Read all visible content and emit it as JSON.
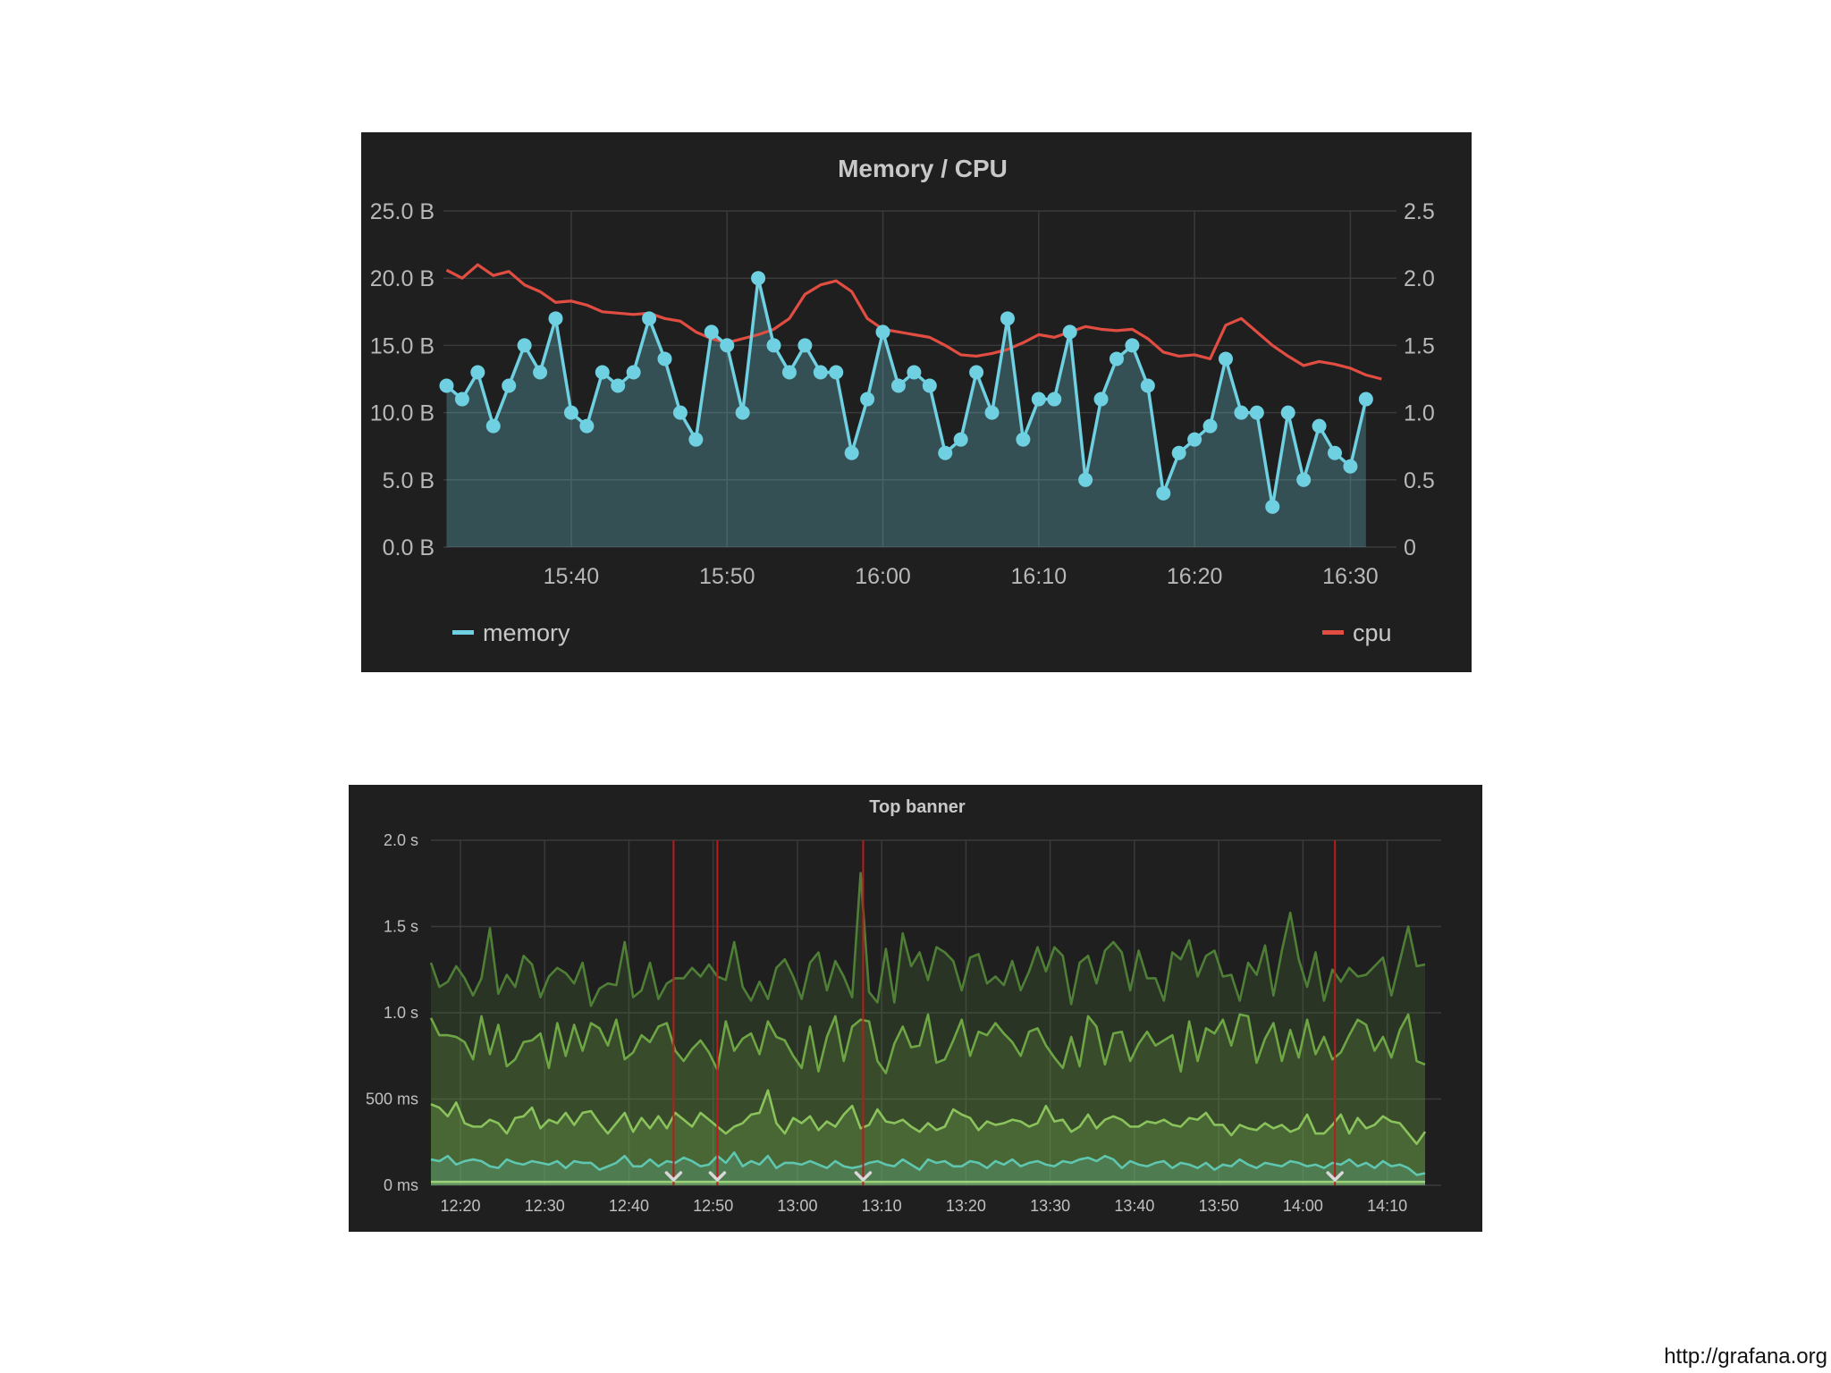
{
  "footer": {
    "url": "http://grafana.org"
  },
  "chart_data": [
    {
      "type": "line",
      "title": "Memory / CPU",
      "x_tick_labels": [
        "15:40",
        "15:50",
        "16:00",
        "16:10",
        "16:20",
        "16:30"
      ],
      "x_tick_minutes": [
        40,
        50,
        60,
        70,
        80,
        90
      ],
      "xlim_minutes": [
        31.8,
        92.5
      ],
      "y_left": {
        "ticks": [
          0,
          5,
          10,
          15,
          20,
          25
        ],
        "tick_labels": [
          "0.0 B",
          "5.0 B",
          "10.0 B",
          "15.0 B",
          "20.0 B",
          "25.0 B"
        ],
        "ylim": [
          0,
          25
        ]
      },
      "y_right": {
        "ticks": [
          0,
          0.5,
          1.0,
          1.5,
          2.0,
          2.5
        ],
        "tick_labels": [
          "0",
          "0.5",
          "1.0",
          "1.5",
          "2.0",
          "2.5"
        ],
        "ylim": [
          0,
          2.5
        ]
      },
      "grid": true,
      "legend": {
        "position": "bottom",
        "items": [
          {
            "name": "memory",
            "color": "#6ed0e0"
          },
          {
            "name": "cpu",
            "color": "#e24d42"
          }
        ]
      },
      "series": [
        {
          "name": "memory",
          "axis": "left",
          "color": "#6ed0e0",
          "fill": true,
          "points": true,
          "x_minutes": [
            32,
            33,
            34,
            35,
            36,
            37,
            38,
            39,
            40,
            41,
            42,
            43,
            44,
            45,
            46,
            47,
            48,
            49,
            50,
            51,
            52,
            53,
            54,
            55,
            56,
            57,
            58,
            59,
            60,
            61,
            62,
            63,
            64,
            65,
            66,
            67,
            68,
            69,
            70,
            71,
            72,
            73,
            74,
            75,
            76,
            77,
            78,
            79,
            80,
            81,
            82,
            83,
            84,
            85,
            86,
            87,
            88,
            89,
            90,
            91
          ],
          "values": [
            12,
            11,
            13,
            9,
            12,
            15,
            13,
            17,
            10,
            9,
            13,
            12,
            13,
            17,
            14,
            10,
            8,
            16,
            15,
            10,
            20,
            15,
            13,
            15,
            13,
            13,
            7,
            11,
            16,
            12,
            13,
            12,
            7,
            8,
            13,
            10,
            17,
            8,
            11,
            11,
            16,
            5,
            11,
            14,
            15,
            12,
            4,
            7,
            8,
            9,
            14,
            10,
            10,
            3,
            10,
            5,
            9,
            7,
            6,
            11
          ]
        },
        {
          "name": "cpu",
          "axis": "right",
          "color": "#e24d42",
          "fill": false,
          "points": false,
          "x_minutes": [
            32,
            33,
            34,
            35,
            36,
            37,
            38,
            39,
            40,
            41,
            42,
            43,
            44,
            45,
            46,
            47,
            48,
            49,
            50,
            51,
            52,
            53,
            54,
            55,
            56,
            57,
            58,
            59,
            60,
            61,
            62,
            63,
            64,
            65,
            66,
            67,
            68,
            69,
            70,
            71,
            72,
            73,
            74,
            75,
            76,
            77,
            78,
            79,
            80,
            81,
            82,
            83,
            84,
            85,
            86,
            87,
            88,
            89,
            90,
            91,
            92
          ],
          "values": [
            2.06,
            2.0,
            2.1,
            2.02,
            2.05,
            1.95,
            1.9,
            1.82,
            1.83,
            1.8,
            1.75,
            1.74,
            1.73,
            1.74,
            1.7,
            1.68,
            1.6,
            1.55,
            1.52,
            1.55,
            1.58,
            1.62,
            1.7,
            1.88,
            1.95,
            1.98,
            1.9,
            1.7,
            1.62,
            1.6,
            1.58,
            1.56,
            1.5,
            1.43,
            1.42,
            1.44,
            1.47,
            1.52,
            1.58,
            1.56,
            1.6,
            1.64,
            1.62,
            1.61,
            1.62,
            1.55,
            1.45,
            1.42,
            1.43,
            1.4,
            1.65,
            1.7,
            1.6,
            1.5,
            1.42,
            1.35,
            1.38,
            1.36,
            1.33,
            1.28,
            1.25
          ]
        }
      ]
    },
    {
      "type": "area",
      "title": "Top banner",
      "x_tick_labels": [
        "12:20",
        "12:30",
        "12:40",
        "12:50",
        "13:00",
        "13:10",
        "13:20",
        "13:30",
        "13:40",
        "13:50",
        "14:00",
        "14:10"
      ],
      "x_tick_minutes": [
        20,
        30,
        40,
        50,
        60,
        70,
        80,
        90,
        100,
        110,
        120,
        130
      ],
      "xlim_minutes": [
        16.5,
        134.5
      ],
      "y": {
        "ticks": [
          0,
          0.5,
          1.0,
          1.5,
          2.0
        ],
        "tick_labels": [
          "0 ms",
          "500 ms",
          "1.0 s",
          "1.5 s",
          "2.0 s"
        ],
        "ylim": [
          0,
          2.0
        ]
      },
      "grid": true,
      "annotations_x_minutes": [
        45.3,
        50.5,
        67.8,
        123.8
      ],
      "annotation_color": "#bb1b1b",
      "series": [
        {
          "color": "#4f7f36",
          "x_start_minutes": 16.5,
          "x_step_minutes": 1,
          "values": [
            1.29,
            1.15,
            1.18,
            1.27,
            1.2,
            1.1,
            1.2,
            1.49,
            1.11,
            1.22,
            1.15,
            1.33,
            1.28,
            1.09,
            1.21,
            1.26,
            1.23,
            1.17,
            1.29,
            1.04,
            1.14,
            1.17,
            1.16,
            1.41,
            1.09,
            1.13,
            1.29,
            1.08,
            1.17,
            1.2,
            1.2,
            1.26,
            1.21,
            1.28,
            1.21,
            1.19,
            1.41,
            1.15,
            1.07,
            1.18,
            1.08,
            1.26,
            1.31,
            1.21,
            1.08,
            1.29,
            1.35,
            1.13,
            1.3,
            1.21,
            1.09,
            1.81,
            1.12,
            1.06,
            1.37,
            1.06,
            1.46,
            1.27,
            1.35,
            1.19,
            1.38,
            1.35,
            1.3,
            1.13,
            1.32,
            1.34,
            1.17,
            1.21,
            1.16,
            1.3,
            1.13,
            1.24,
            1.38,
            1.24,
            1.38,
            1.33,
            1.05,
            1.29,
            1.33,
            1.17,
            1.36,
            1.41,
            1.35,
            1.13,
            1.36,
            1.2,
            1.2,
            1.07,
            1.35,
            1.31,
            1.42,
            1.21,
            1.33,
            1.36,
            1.21,
            1.22,
            1.07,
            1.29,
            1.22,
            1.39,
            1.1,
            1.36,
            1.58,
            1.31,
            1.15,
            1.35,
            1.07,
            1.25,
            1.18,
            1.26,
            1.21,
            1.22,
            1.27,
            1.32,
            1.1,
            1.3,
            1.5,
            1.27,
            1.28
          ]
        },
        {
          "color": "#6ea545",
          "x_start_minutes": 16.5,
          "x_step_minutes": 1,
          "values": [
            0.97,
            0.87,
            0.87,
            0.86,
            0.83,
            0.73,
            0.98,
            0.76,
            0.93,
            0.69,
            0.73,
            0.83,
            0.84,
            0.88,
            0.68,
            0.94,
            0.75,
            0.93,
            0.78,
            0.94,
            0.91,
            0.81,
            0.96,
            0.73,
            0.77,
            0.87,
            0.83,
            0.92,
            0.94,
            0.78,
            0.72,
            0.79,
            0.84,
            0.77,
            0.67,
            0.95,
            0.78,
            0.85,
            0.88,
            0.76,
            0.95,
            0.86,
            0.84,
            0.75,
            0.68,
            0.92,
            0.66,
            0.86,
            0.98,
            0.72,
            0.92,
            0.96,
            0.95,
            0.72,
            0.65,
            0.82,
            0.92,
            0.8,
            0.81,
            0.99,
            0.71,
            0.73,
            0.84,
            0.96,
            0.75,
            0.89,
            0.87,
            0.94,
            0.88,
            0.83,
            0.75,
            0.89,
            0.91,
            0.81,
            0.74,
            0.68,
            0.86,
            0.69,
            0.98,
            0.92,
            0.7,
            0.88,
            0.89,
            0.72,
            0.82,
            0.89,
            0.81,
            0.84,
            0.87,
            0.66,
            0.95,
            0.72,
            0.91,
            0.88,
            0.96,
            0.81,
            0.99,
            0.98,
            0.71,
            0.85,
            0.94,
            0.72,
            0.9,
            0.74,
            0.96,
            0.76,
            0.86,
            0.73,
            0.77,
            0.87,
            0.96,
            0.93,
            0.78,
            0.86,
            0.74,
            0.9,
            0.99,
            0.72,
            0.7
          ]
        },
        {
          "color": "#8ac35c",
          "x_start_minutes": 16.5,
          "x_step_minutes": 1,
          "values": [
            0.47,
            0.45,
            0.4,
            0.48,
            0.36,
            0.34,
            0.34,
            0.38,
            0.36,
            0.3,
            0.39,
            0.4,
            0.45,
            0.33,
            0.38,
            0.36,
            0.42,
            0.35,
            0.42,
            0.43,
            0.36,
            0.3,
            0.36,
            0.42,
            0.31,
            0.39,
            0.33,
            0.4,
            0.33,
            0.42,
            0.38,
            0.34,
            0.42,
            0.38,
            0.34,
            0.3,
            0.34,
            0.36,
            0.41,
            0.42,
            0.55,
            0.36,
            0.3,
            0.39,
            0.36,
            0.4,
            0.32,
            0.37,
            0.34,
            0.41,
            0.46,
            0.33,
            0.35,
            0.44,
            0.37,
            0.36,
            0.38,
            0.34,
            0.31,
            0.36,
            0.32,
            0.34,
            0.44,
            0.41,
            0.39,
            0.32,
            0.37,
            0.35,
            0.36,
            0.38,
            0.37,
            0.34,
            0.36,
            0.46,
            0.37,
            0.38,
            0.31,
            0.34,
            0.41,
            0.33,
            0.38,
            0.4,
            0.38,
            0.34,
            0.34,
            0.37,
            0.36,
            0.38,
            0.35,
            0.34,
            0.39,
            0.38,
            0.42,
            0.35,
            0.35,
            0.29,
            0.35,
            0.33,
            0.32,
            0.36,
            0.33,
            0.35,
            0.31,
            0.33,
            0.41,
            0.3,
            0.3,
            0.35,
            0.41,
            0.3,
            0.39,
            0.33,
            0.35,
            0.4,
            0.37,
            0.36,
            0.3,
            0.24,
            0.31
          ]
        },
        {
          "color": "#5fc7b0",
          "x_start_minutes": 16.5,
          "x_step_minutes": 1,
          "values": [
            0.15,
            0.14,
            0.17,
            0.12,
            0.14,
            0.15,
            0.14,
            0.11,
            0.1,
            0.15,
            0.13,
            0.12,
            0.14,
            0.13,
            0.12,
            0.14,
            0.1,
            0.14,
            0.13,
            0.13,
            0.09,
            0.11,
            0.13,
            0.17,
            0.11,
            0.11,
            0.15,
            0.11,
            0.14,
            0.13,
            0.16,
            0.14,
            0.11,
            0.12,
            0.17,
            0.13,
            0.19,
            0.11,
            0.14,
            0.12,
            0.17,
            0.1,
            0.13,
            0.13,
            0.12,
            0.14,
            0.12,
            0.1,
            0.14,
            0.11,
            0.1,
            0.11,
            0.13,
            0.14,
            0.12,
            0.11,
            0.15,
            0.12,
            0.09,
            0.15,
            0.13,
            0.14,
            0.11,
            0.11,
            0.14,
            0.13,
            0.1,
            0.14,
            0.12,
            0.15,
            0.11,
            0.13,
            0.14,
            0.12,
            0.11,
            0.14,
            0.13,
            0.15,
            0.16,
            0.14,
            0.17,
            0.15,
            0.1,
            0.14,
            0.12,
            0.11,
            0.13,
            0.14,
            0.1,
            0.13,
            0.12,
            0.1,
            0.13,
            0.09,
            0.12,
            0.11,
            0.15,
            0.12,
            0.1,
            0.13,
            0.12,
            0.11,
            0.14,
            0.13,
            0.11,
            0.12,
            0.1,
            0.13,
            0.12,
            0.15,
            0.11,
            0.13,
            0.1,
            0.14,
            0.11,
            0.12,
            0.1,
            0.06,
            0.07
          ]
        },
        {
          "color": "#9ad07a",
          "x_start_minutes": 16.5,
          "x_step_minutes": 1,
          "values": [
            0.02,
            0.02,
            0.02,
            0.02,
            0.02,
            0.02,
            0.02,
            0.02,
            0.02,
            0.02,
            0.02,
            0.02,
            0.02,
            0.02,
            0.02,
            0.02,
            0.02,
            0.02,
            0.02,
            0.02,
            0.02,
            0.02,
            0.02,
            0.02,
            0.02,
            0.02,
            0.02,
            0.02,
            0.02,
            0.02,
            0.02,
            0.02,
            0.02,
            0.02,
            0.02,
            0.02,
            0.02,
            0.02,
            0.02,
            0.02,
            0.02,
            0.02,
            0.02,
            0.02,
            0.02,
            0.02,
            0.02,
            0.02,
            0.02,
            0.02,
            0.02,
            0.02,
            0.02,
            0.02,
            0.02,
            0.02,
            0.02,
            0.02,
            0.02,
            0.02,
            0.02,
            0.02,
            0.02,
            0.02,
            0.02,
            0.02,
            0.02,
            0.02,
            0.02,
            0.02,
            0.02,
            0.02,
            0.02,
            0.02,
            0.02,
            0.02,
            0.02,
            0.02,
            0.02,
            0.02,
            0.02,
            0.02,
            0.02,
            0.02,
            0.02,
            0.02,
            0.02,
            0.02,
            0.02,
            0.02,
            0.02,
            0.02,
            0.02,
            0.02,
            0.02,
            0.02,
            0.02,
            0.02,
            0.02,
            0.02,
            0.02,
            0.02,
            0.02,
            0.02,
            0.02,
            0.02,
            0.02,
            0.02,
            0.02,
            0.02,
            0.02,
            0.02,
            0.02,
            0.02,
            0.02,
            0.02,
            0.02,
            0.02,
            0.02
          ]
        }
      ]
    }
  ]
}
